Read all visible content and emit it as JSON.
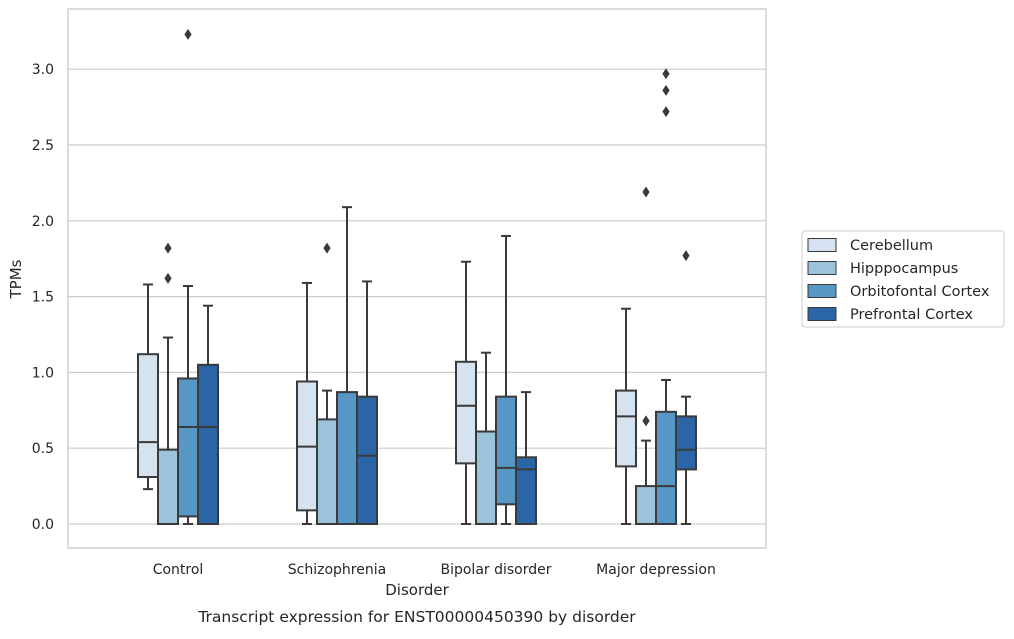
{
  "chart_data": {
    "type": "box",
    "title": "",
    "caption": "Transcript expression for ENST00000450390 by disorder",
    "xlabel": "Disorder",
    "ylabel": "TPMs",
    "ylim": [
      -0.16,
      3.38
    ],
    "yticks": [
      0.0,
      0.5,
      1.0,
      1.5,
      2.0,
      2.5,
      3.0
    ],
    "ytick_labels": [
      "0.0",
      "0.5",
      "1.0",
      "1.5",
      "2.0",
      "2.5",
      "3.0"
    ],
    "grid": "horizontal",
    "legend_position": "right",
    "categories": [
      "Control",
      "Schizophrenia",
      "Bipolar disorder",
      "Major depression"
    ],
    "series": [
      {
        "name": "Cerebellum",
        "color": "#d5e3f1",
        "boxes": [
          {
            "whisker_low": 0.23,
            "q1": 0.31,
            "median": 0.54,
            "q3": 1.12,
            "whisker_high": 1.58,
            "outliers": []
          },
          {
            "whisker_low": 0.0,
            "q1": 0.09,
            "median": 0.51,
            "q3": 0.94,
            "whisker_high": 1.59,
            "outliers": []
          },
          {
            "whisker_low": 0.0,
            "q1": 0.4,
            "median": 0.78,
            "q3": 1.07,
            "whisker_high": 1.73,
            "outliers": []
          },
          {
            "whisker_low": 0.0,
            "q1": 0.38,
            "median": 0.71,
            "q3": 0.88,
            "whisker_high": 1.42,
            "outliers": []
          }
        ]
      },
      {
        "name": "Hipppocampus",
        "color": "#9cc3dc",
        "boxes": [
          {
            "whisker_low": 0.0,
            "q1": 0.0,
            "median": 0.0,
            "q3": 0.49,
            "whisker_high": 1.23,
            "outliers": [
              1.62,
              1.82
            ]
          },
          {
            "whisker_low": 0.0,
            "q1": 0.0,
            "median": 0.0,
            "q3": 0.69,
            "whisker_high": 0.88,
            "outliers": [
              1.82
            ]
          },
          {
            "whisker_low": 0.0,
            "q1": 0.0,
            "median": 0.0,
            "q3": 0.61,
            "whisker_high": 1.13,
            "outliers": []
          },
          {
            "whisker_low": 0.0,
            "q1": 0.0,
            "median": 0.0,
            "q3": 0.25,
            "whisker_high": 0.55,
            "outliers": [
              0.68,
              2.19
            ]
          }
        ]
      },
      {
        "name": "Orbitofontal Cortex",
        "color": "#5697c6",
        "boxes": [
          {
            "whisker_low": 0.0,
            "q1": 0.05,
            "median": 0.64,
            "q3": 0.96,
            "whisker_high": 1.57,
            "outliers": [
              3.23
            ]
          },
          {
            "whisker_low": 0.0,
            "q1": 0.0,
            "median": 0.0,
            "q3": 0.87,
            "whisker_high": 2.09,
            "outliers": []
          },
          {
            "whisker_low": 0.0,
            "q1": 0.13,
            "median": 0.37,
            "q3": 0.84,
            "whisker_high": 1.9,
            "outliers": []
          },
          {
            "whisker_low": 0.0,
            "q1": 0.0,
            "median": 0.25,
            "q3": 0.74,
            "whisker_high": 0.95,
            "outliers": [
              2.72,
              2.86,
              2.97
            ]
          }
        ]
      },
      {
        "name": "Prefrontal Cortex",
        "color": "#2a65a6",
        "boxes": [
          {
            "whisker_low": 0.0,
            "q1": 0.0,
            "median": 0.64,
            "q3": 1.05,
            "whisker_high": 1.44,
            "outliers": []
          },
          {
            "whisker_low": 0.0,
            "q1": 0.0,
            "median": 0.45,
            "q3": 0.84,
            "whisker_high": 1.6,
            "outliers": []
          },
          {
            "whisker_low": 0.0,
            "q1": 0.0,
            "median": 0.36,
            "q3": 0.44,
            "whisker_high": 0.87,
            "outliers": []
          },
          {
            "whisker_low": 0.0,
            "q1": 0.36,
            "median": 0.49,
            "q3": 0.71,
            "whisker_high": 0.84,
            "outliers": [
              1.77
            ]
          }
        ]
      }
    ]
  }
}
